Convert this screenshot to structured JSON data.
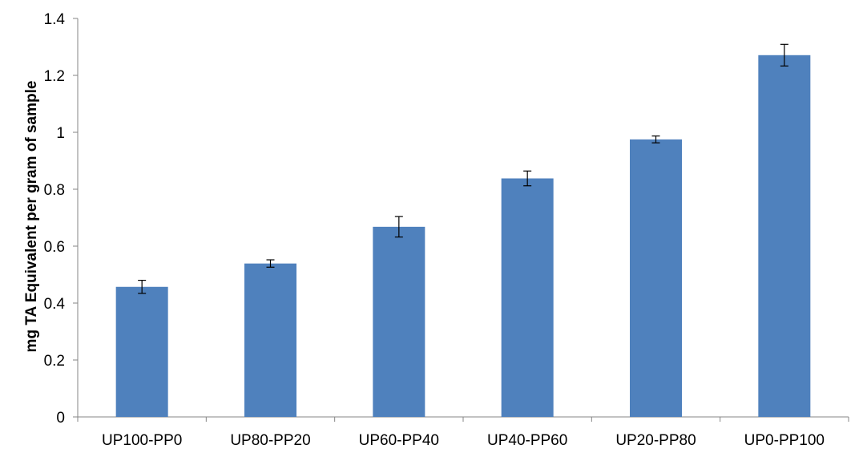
{
  "chart_data": {
    "type": "bar",
    "title": "",
    "xlabel": "",
    "ylabel": "mg TA Equivalent per gram of sample",
    "categories": [
      "UP100-PP0",
      "UP80-PP20",
      "UP60-PP40",
      "UP40-PP60",
      "UP20-PP80",
      "UP0-PP100"
    ],
    "values": [
      0.457,
      0.539,
      0.668,
      0.838,
      0.975,
      1.271
    ],
    "error": [
      0.023,
      0.013,
      0.036,
      0.026,
      0.012,
      0.038
    ],
    "ylim": [
      0,
      1.4
    ],
    "yticks": [
      0,
      0.2,
      0.4,
      0.6,
      0.8,
      1,
      1.2,
      1.4
    ],
    "ytick_labels": [
      "0",
      "0.2",
      "0.4",
      "0.6",
      "0.8",
      "1",
      "1.2",
      "1.4"
    ],
    "grid": false,
    "legend": "none",
    "bar_color": "#4f81bd",
    "axis_color": "#868686"
  }
}
